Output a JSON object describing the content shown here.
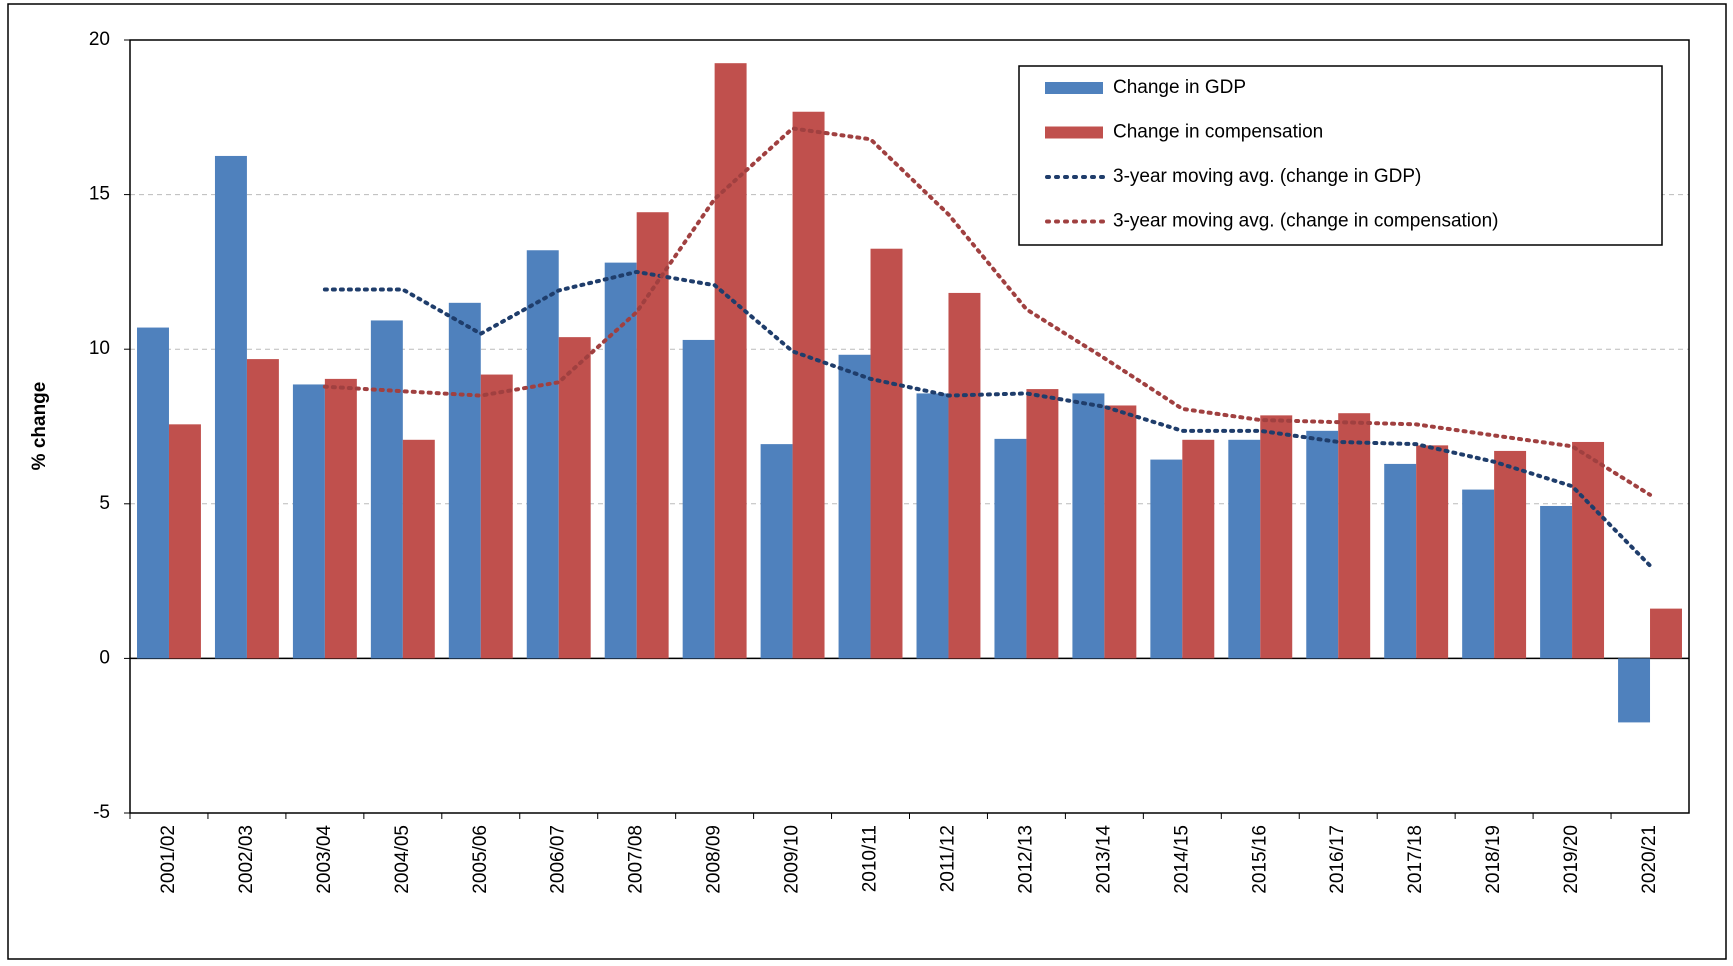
{
  "chart_data": {
    "type": "bar",
    "y_label": "% change",
    "categories": [
      "2001/02",
      "2002/03",
      "2003/04",
      "2004/05",
      "2005/06",
      "2006/07",
      "2007/08",
      "2008/09",
      "2009/10",
      "2010/11",
      "2011/12",
      "2012/13",
      "2013/14",
      "2014/15",
      "2015/16",
      "2016/17",
      "2017/18",
      "2018/19",
      "2019/20",
      "2020/21"
    ],
    "series": [
      {
        "name": "Change in GDP",
        "type": "bar",
        "color": "#4f81bd",
        "values": [
          10.7,
          16.25,
          8.86,
          10.93,
          11.5,
          13.2,
          12.8,
          10.3,
          6.93,
          9.82,
          8.57,
          7.1,
          8.57,
          6.43,
          7.07,
          7.36,
          6.29,
          5.46,
          4.93,
          -2.07
        ]
      },
      {
        "name": "Change in compensation",
        "type": "bar",
        "color": "#c0504d",
        "values": [
          7.57,
          9.68,
          9.04,
          7.07,
          9.18,
          10.39,
          14.43,
          19.25,
          17.68,
          13.25,
          11.82,
          8.71,
          8.18,
          7.07,
          7.86,
          7.93,
          6.89,
          6.71,
          7.0,
          1.61
        ]
      },
      {
        "name": "3-year moving avg. (change in GDP)",
        "type": "line",
        "color": "#1f3d6b",
        "values": [
          null,
          null,
          11.93,
          11.93,
          10.5,
          11.9,
          12.5,
          12.07,
          9.93,
          9.04,
          8.5,
          8.57,
          8.14,
          7.36,
          7.36,
          7.0,
          6.93,
          6.36,
          5.57,
          3.0
        ]
      },
      {
        "name": "3-year moving avg. (change in compensation)",
        "type": "line",
        "color": "#a04040",
        "values": [
          null,
          null,
          8.79,
          8.64,
          8.5,
          8.93,
          11.2,
          14.86,
          17.14,
          16.79,
          14.36,
          11.29,
          9.71,
          8.07,
          7.71,
          7.64,
          7.57,
          7.21,
          6.86,
          5.29
        ]
      }
    ],
    "ylim": [
      -5,
      20
    ],
    "yticks": [
      -5,
      0,
      5,
      10,
      15,
      20
    ],
    "grid": true,
    "legend": "top-right"
  }
}
